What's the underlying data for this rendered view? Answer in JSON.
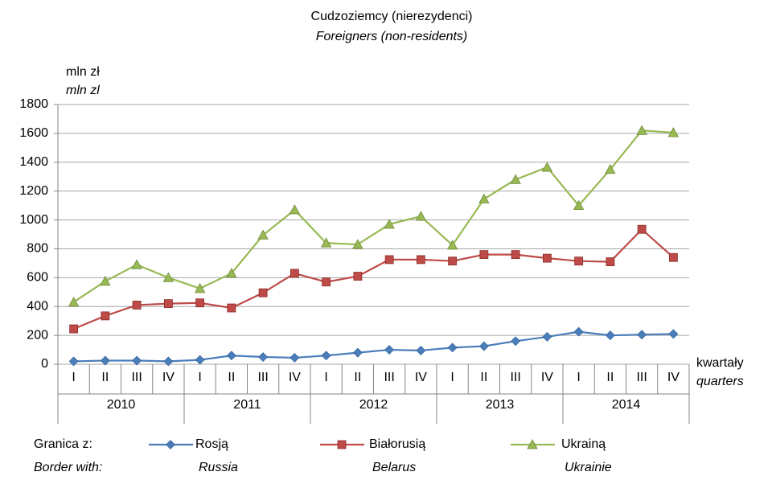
{
  "chart_data": {
    "type": "line",
    "title": "Cudzoziemcy (nierezydenci)",
    "subtitle": "Foreigners (non-residents)",
    "y_label": "mln zł",
    "y_label_en": "mln zl",
    "x_label": "kwartały",
    "x_label_en": "quarters",
    "legend_title": "Granica z:",
    "legend_title_en": "Border with:",
    "categories": [
      "I",
      "II",
      "III",
      "IV",
      "I",
      "II",
      "III",
      "IV",
      "I",
      "II",
      "III",
      "IV",
      "I",
      "II",
      "III",
      "IV",
      "I",
      "II",
      "III",
      "IV"
    ],
    "years": [
      "2010",
      "2011",
      "2012",
      "2013",
      "2014"
    ],
    "series": [
      {
        "name": "Rosją",
        "name_en": "Russia",
        "color": "#4a7ebb",
        "marker": "diamond",
        "values": [
          20,
          25,
          25,
          20,
          30,
          60,
          50,
          45,
          60,
          80,
          100,
          95,
          115,
          125,
          160,
          190,
          225,
          200,
          205,
          210
        ]
      },
      {
        "name": "Białorusią",
        "name_en": "Belarus",
        "color": "#be4b48",
        "marker": "square",
        "values": [
          245,
          335,
          410,
          420,
          425,
          390,
          495,
          630,
          570,
          610,
          725,
          725,
          715,
          760,
          760,
          735,
          715,
          710,
          935,
          740
        ]
      },
      {
        "name": "Ukrainą",
        "name_en": "Ukrainie",
        "color": "#98b954",
        "marker": "triangle",
        "values": [
          430,
          575,
          690,
          600,
          525,
          630,
          895,
          1070,
          840,
          830,
          970,
          1025,
          825,
          1145,
          1280,
          1365,
          1100,
          1350,
          1620,
          1605
        ]
      }
    ],
    "ylim": [
      0,
      1800
    ],
    "yticks": [
      0,
      200,
      400,
      600,
      800,
      1000,
      1200,
      1400,
      1600,
      1800
    ],
    "grid": true
  }
}
